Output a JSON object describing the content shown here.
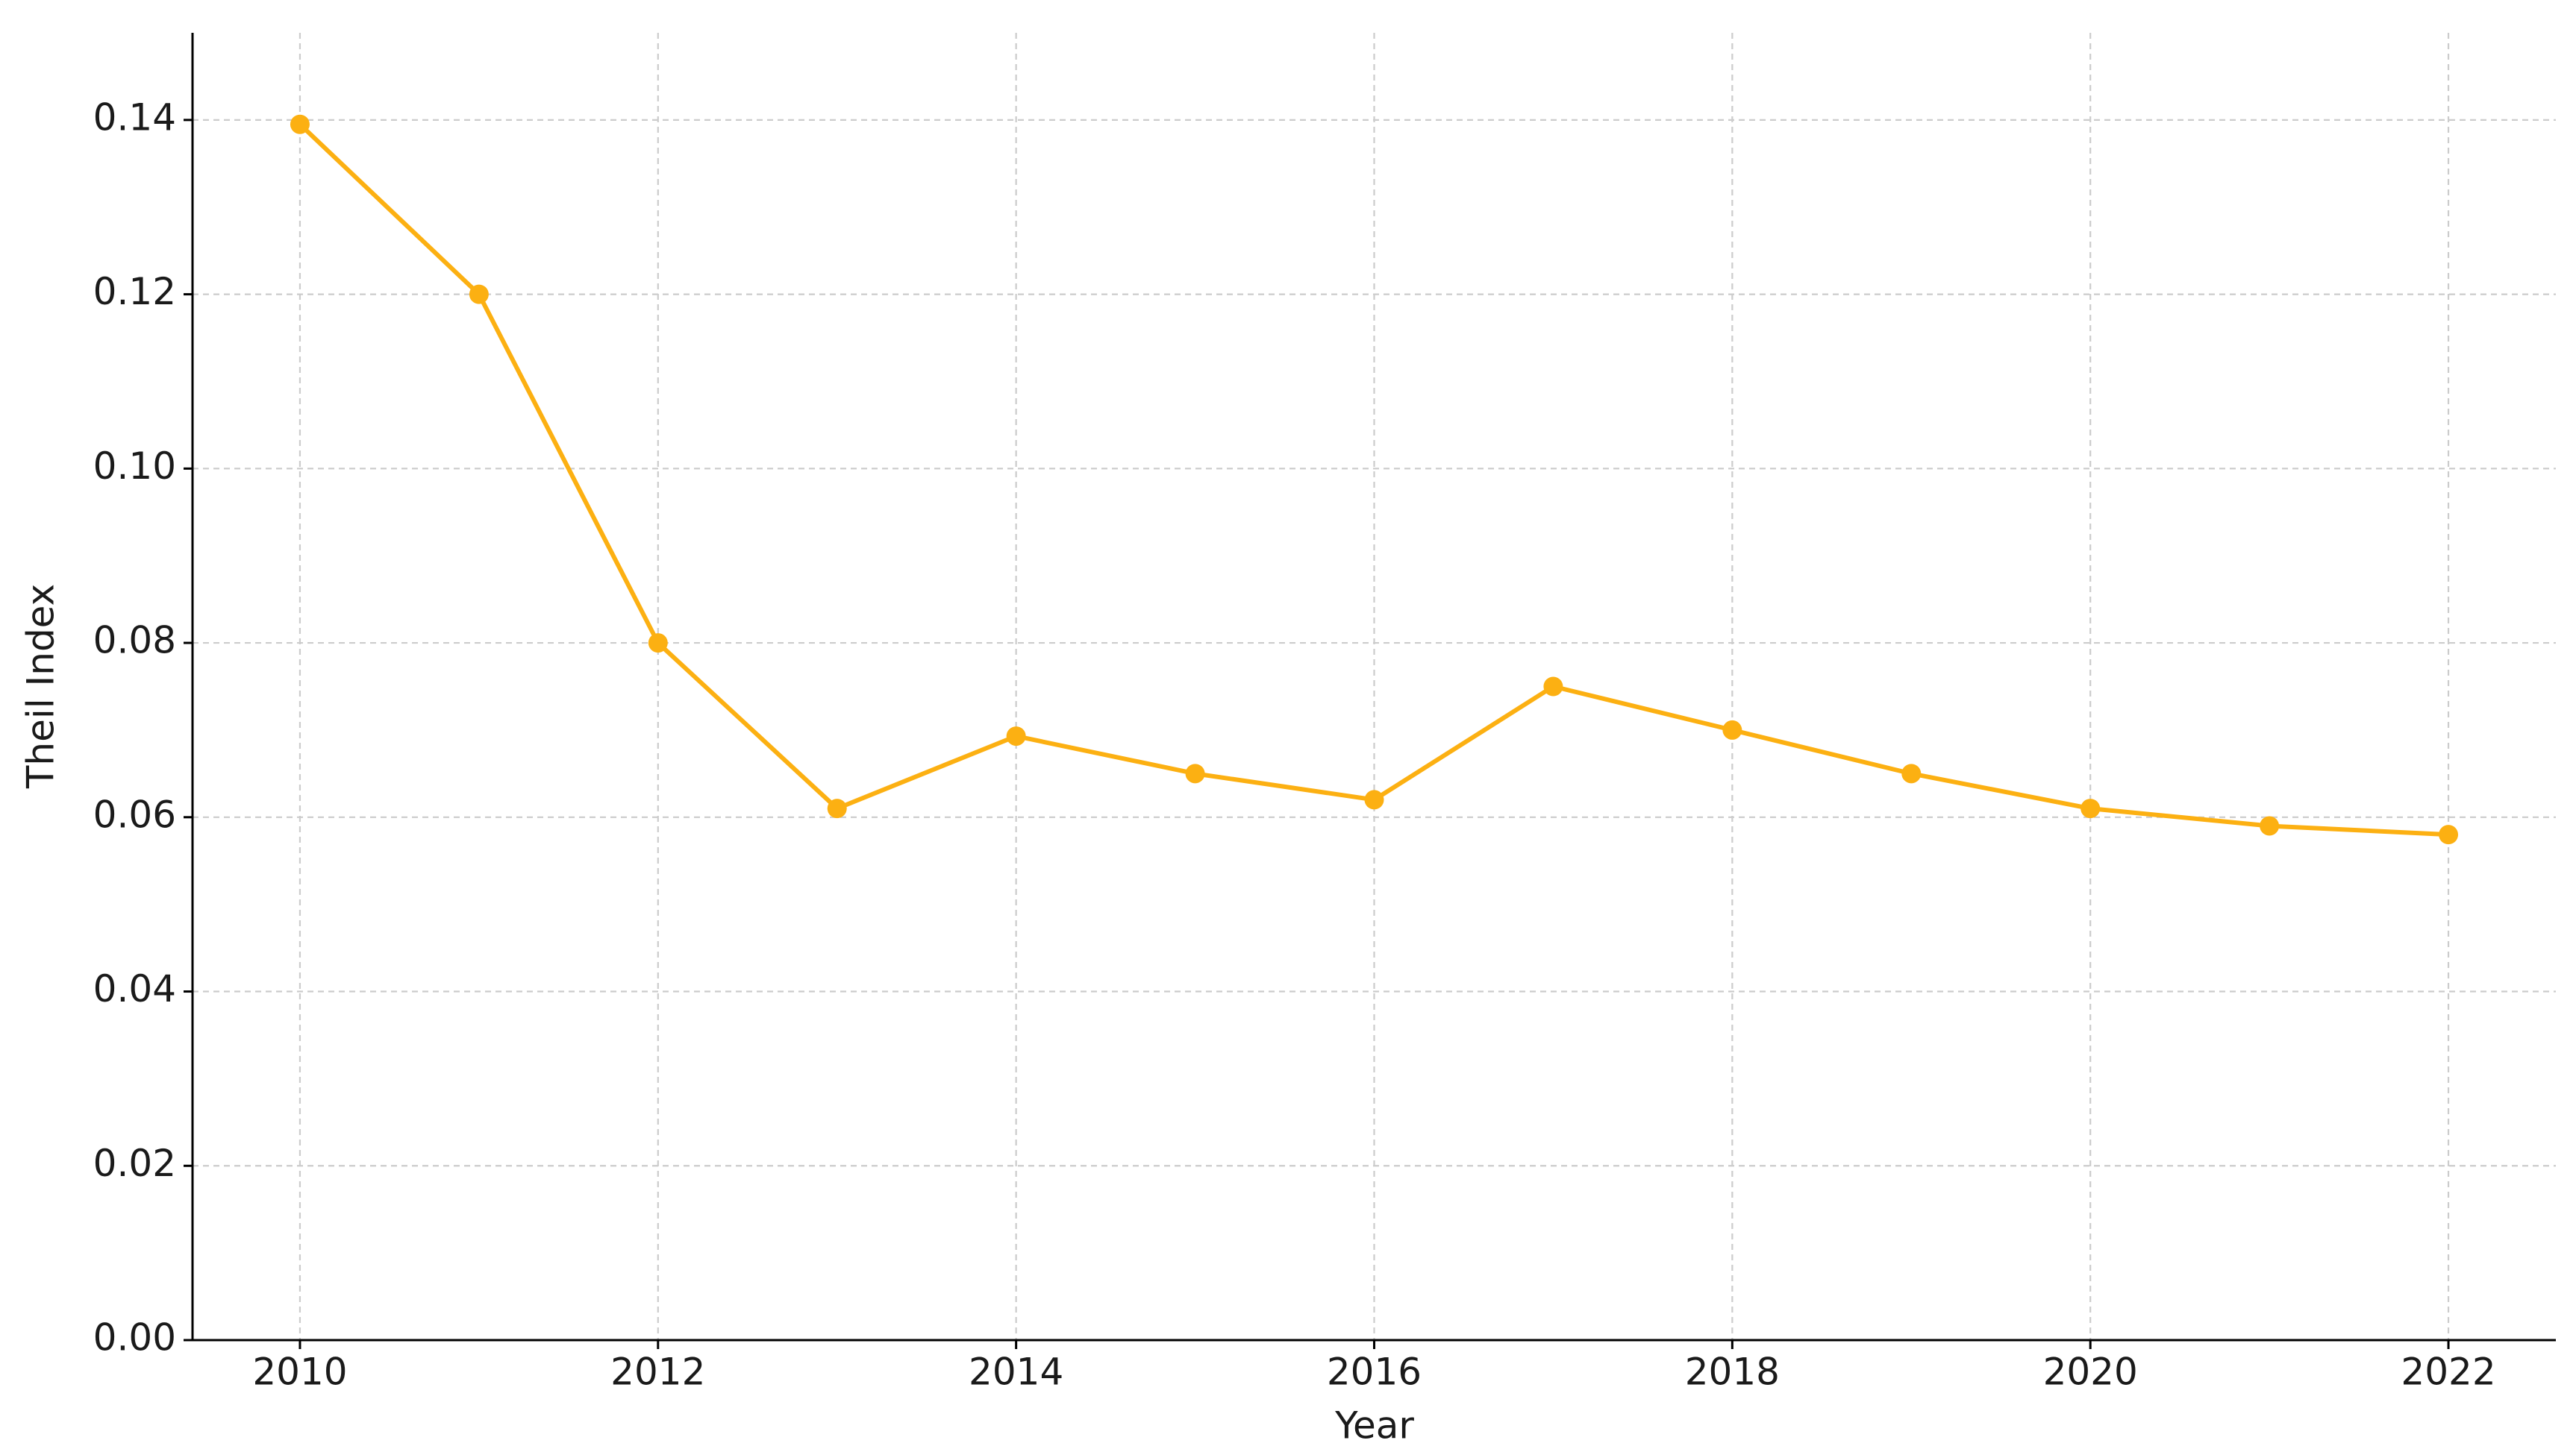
{
  "chart_data": {
    "type": "line",
    "xlabel": "Year",
    "ylabel": "Theil Index",
    "x": [
      2010,
      2011,
      2012,
      2013,
      2014,
      2015,
      2016,
      2017,
      2018,
      2019,
      2020,
      2021,
      2022
    ],
    "series": [
      {
        "name": "Theil Index",
        "color": "#fcb012",
        "values": [
          0.1395,
          0.12,
          0.08,
          0.061,
          0.0693,
          0.065,
          0.062,
          0.075,
          0.07,
          0.065,
          0.061,
          0.059,
          0.058
        ]
      }
    ],
    "xlim": [
      2009.4,
      2022.6
    ],
    "xticks": [
      2010,
      2012,
      2014,
      2016,
      2018,
      2020,
      2022
    ],
    "ylim": [
      0,
      0.15
    ],
    "yticks": [
      {
        "value": 0,
        "label": "0.00"
      },
      0.02,
      0.04,
      0.06,
      0.08,
      {
        "value": 0.1,
        "label": "0.10"
      },
      0.12,
      0.14
    ],
    "grid": true
  }
}
